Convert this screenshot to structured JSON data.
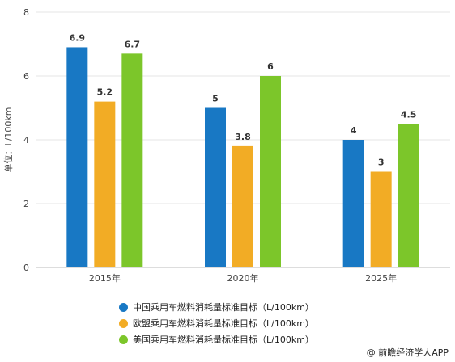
{
  "chart_data": {
    "type": "bar",
    "categories": [
      "2015年",
      "2020年",
      "2025年"
    ],
    "series": [
      {
        "name": "中国乘用车燃料消耗量标准目标（L/100km）",
        "values": [
          6.9,
          5,
          4
        ],
        "color": "#1878c4"
      },
      {
        "name": "欧盟乘用车燃料消耗量标准目标（L/100km）",
        "values": [
          5.2,
          3.8,
          3
        ],
        "color": "#f2ac25"
      },
      {
        "name": "美国乘用车燃料消耗量标准目标（L/100km）",
        "values": [
          6.7,
          6,
          4.5
        ],
        "color": "#7cc62a"
      }
    ],
    "data_labels": [
      [
        "6.9",
        "5.2",
        "6.7"
      ],
      [
        "5",
        "3.8",
        "6"
      ],
      [
        "4",
        "3",
        "4.5"
      ]
    ],
    "title": "",
    "xlabel": "",
    "ylabel": "单位：L/100km",
    "ylim": [
      0,
      8
    ],
    "yticks": [
      0,
      2,
      4,
      6,
      8
    ],
    "grid": true,
    "legend_position": "bottom"
  },
  "footer": {
    "credit": "@ 前瞻经济学人APP"
  }
}
